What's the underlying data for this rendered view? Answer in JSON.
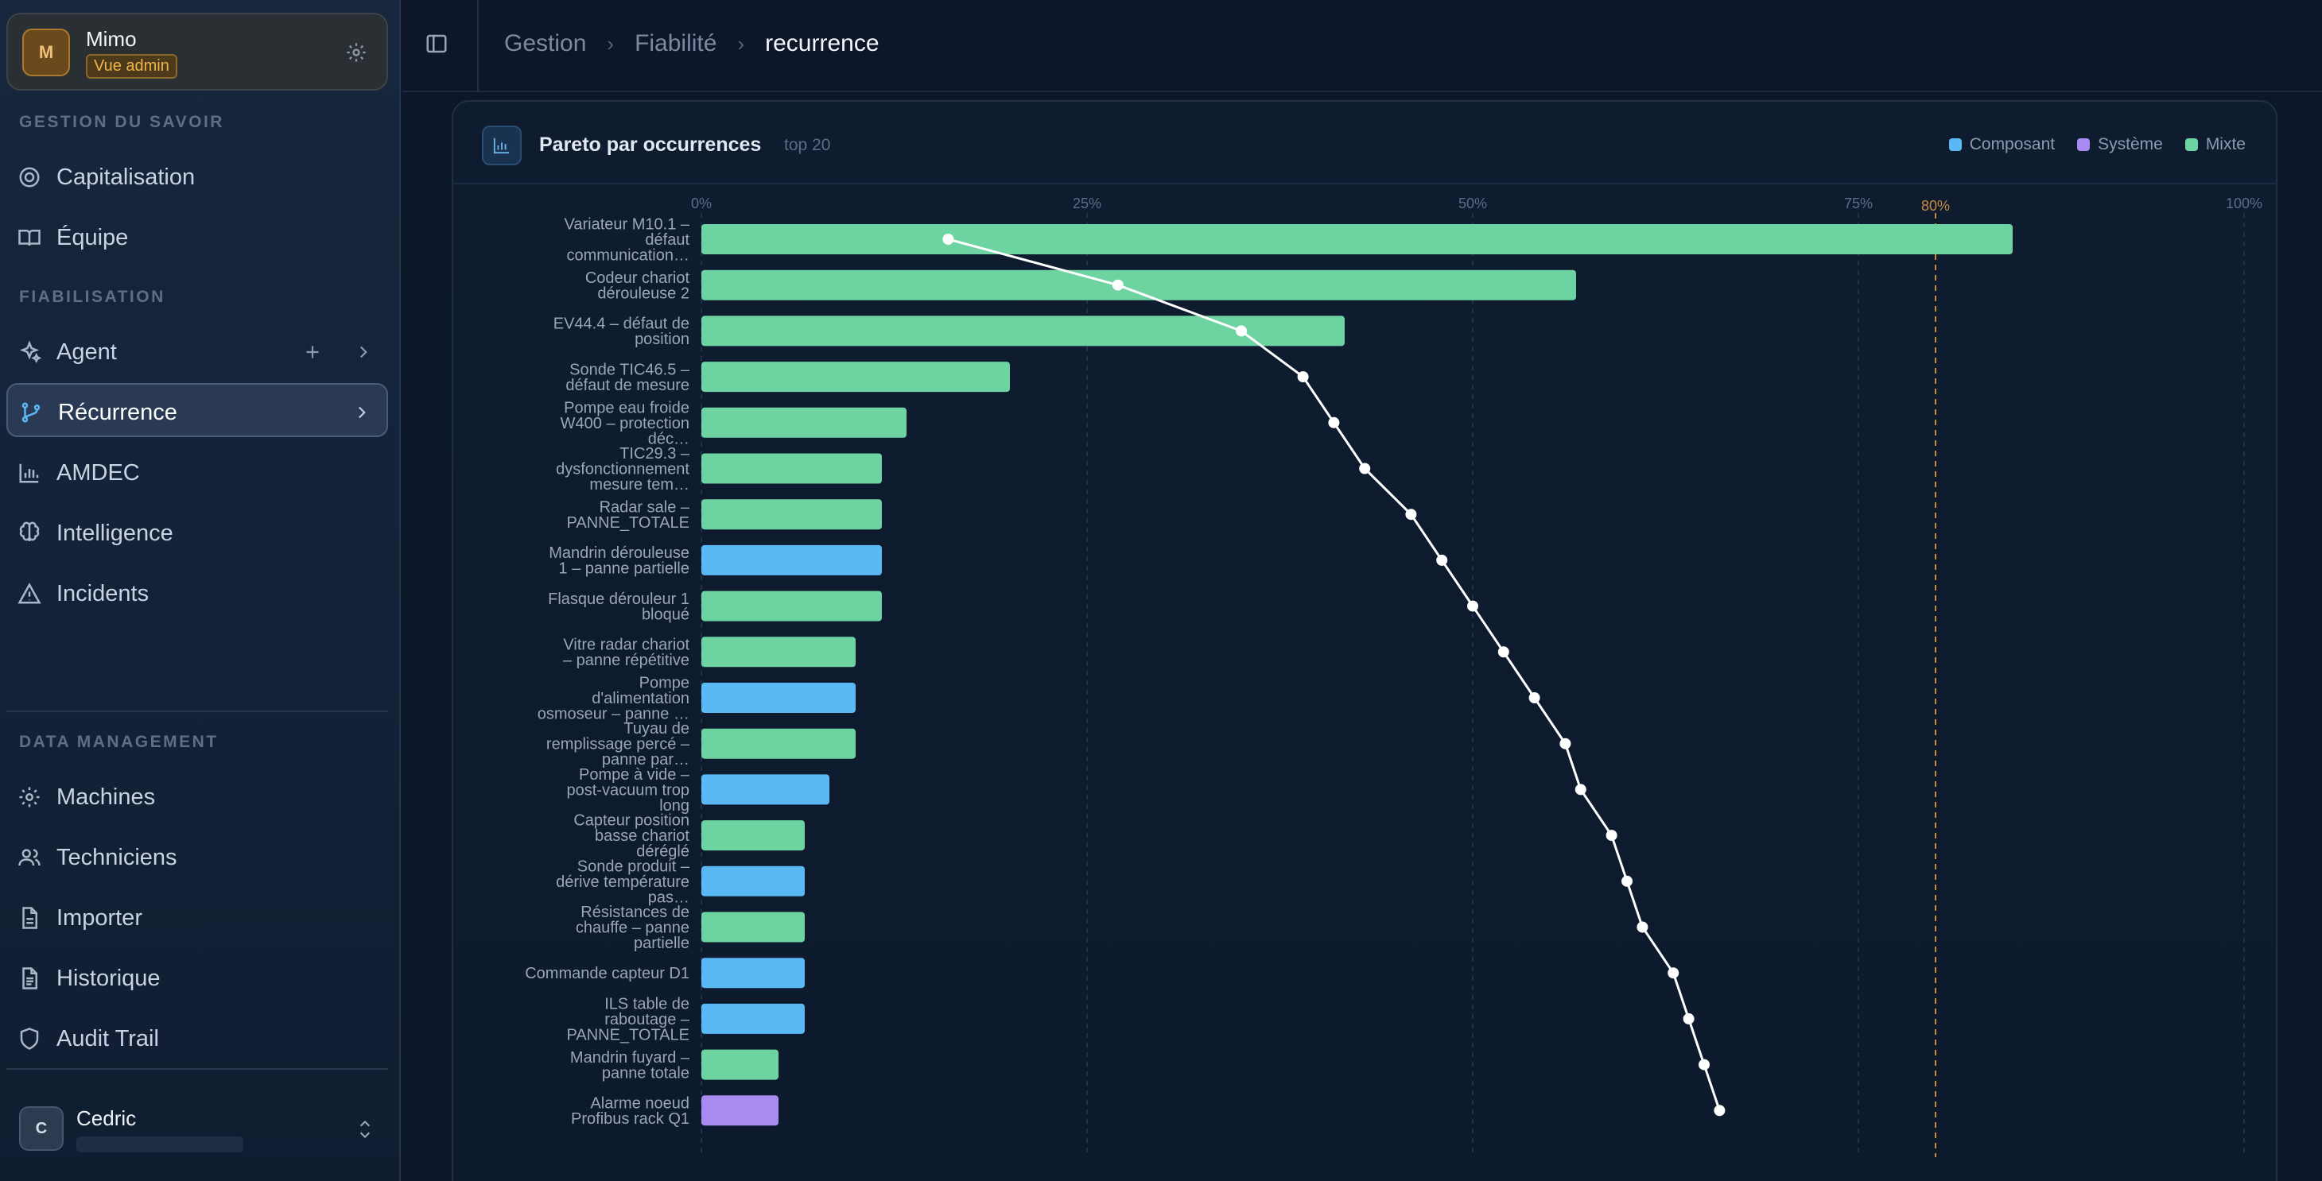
{
  "workspace": {
    "avatar": "M",
    "name": "Mimo",
    "badge": "Vue admin"
  },
  "sidebar": {
    "section_knowledge": "GESTION DU SAVOIR",
    "section_reliability": "FIABILISATION",
    "section_data": "DATA MANAGEMENT",
    "items": [
      {
        "label": "Capitalisation",
        "icon": "target-icon"
      },
      {
        "label": "Équipe",
        "icon": "book-icon"
      },
      {
        "label": "Agent",
        "icon": "sparkles-icon"
      },
      {
        "label": "Récurrence",
        "icon": "git-branch-icon"
      },
      {
        "label": "AMDEC",
        "icon": "bar-chart-icon"
      },
      {
        "label": "Intelligence",
        "icon": "brain-icon"
      },
      {
        "label": "Incidents",
        "icon": "warning-icon"
      },
      {
        "label": "Machines",
        "icon": "gear-icon"
      },
      {
        "label": "Techniciens",
        "icon": "users-icon"
      },
      {
        "label": "Importer",
        "icon": "file-icon"
      },
      {
        "label": "Historique",
        "icon": "file-list-icon"
      },
      {
        "label": "Audit Trail",
        "icon": "shield-icon"
      }
    ]
  },
  "user": {
    "avatar": "C",
    "name": "Cedric"
  },
  "header": {
    "breadcrumbs": [
      "Gestion",
      "Fiabilité",
      "recurrence"
    ]
  },
  "card": {
    "title": "Pareto par occurrences",
    "subtitle": "top 20"
  },
  "colors": {
    "Composant": "#5ab8f5",
    "Système": "#a78bf0",
    "Mixte": "#6dd3a0",
    "threshold": "#c98a3e"
  },
  "chart_data": {
    "type": "bar",
    "orientation": "horizontal",
    "title": "Pareto par occurrences",
    "legend": {
      "placement": "top-right",
      "entries": [
        "Composant",
        "Système",
        "Mixte"
      ]
    },
    "x_ticks": [
      "0%",
      "25%",
      "50%",
      "75%",
      "100%"
    ],
    "xlim": [
      0,
      100
    ],
    "threshold": {
      "value": 80,
      "label": "80%"
    },
    "bars": [
      {
        "label": "Variateur M10.1 – défaut communication…",
        "value": 85,
        "type": "Mixte",
        "cumulative": 16
      },
      {
        "label": "Codeur chariot dérouleuse 2",
        "value": 56.7,
        "type": "Mixte",
        "cumulative": 27
      },
      {
        "label": "EV44.4 – défaut de position",
        "value": 41.7,
        "type": "Mixte",
        "cumulative": 35
      },
      {
        "label": "Sonde TIC46.5 – défaut de mesure",
        "value": 20,
        "type": "Mixte",
        "cumulative": 39
      },
      {
        "label": "Pompe eau froide W400 – protection déc…",
        "value": 13.3,
        "type": "Mixte",
        "cumulative": 41
      },
      {
        "label": "TIC29.3 – dysfonctionnement mesure tem…",
        "value": 11.7,
        "type": "Mixte",
        "cumulative": 43
      },
      {
        "label": "Radar sale – PANNE_TOTALE",
        "value": 11.7,
        "type": "Mixte",
        "cumulative": 46
      },
      {
        "label": "Mandrin dérouleuse 1 – panne partielle",
        "value": 11.7,
        "type": "Composant",
        "cumulative": 48
      },
      {
        "label": "Flasque dérouleur 1 bloqué",
        "value": 11.7,
        "type": "Mixte",
        "cumulative": 50
      },
      {
        "label": "Vitre radar chariot – panne répétitive",
        "value": 10,
        "type": "Mixte",
        "cumulative": 52
      },
      {
        "label": "Pompe d'alimentation osmoseur – panne …",
        "value": 10,
        "type": "Composant",
        "cumulative": 54
      },
      {
        "label": "Tuyau de remplissage percé – panne par…",
        "value": 10,
        "type": "Mixte",
        "cumulative": 56
      },
      {
        "label": "Pompe à vide – post-vacuum trop long",
        "value": 8.3,
        "type": "Composant",
        "cumulative": 57
      },
      {
        "label": "Capteur position basse chariot déréglé",
        "value": 6.7,
        "type": "Mixte",
        "cumulative": 59
      },
      {
        "label": "Sonde produit – dérive température pas…",
        "value": 6.7,
        "type": "Composant",
        "cumulative": 60
      },
      {
        "label": "Résistances de chauffe – panne partielle",
        "value": 6.7,
        "type": "Mixte",
        "cumulative": 61
      },
      {
        "label": "Commande capteur D1",
        "value": 6.7,
        "type": "Composant",
        "cumulative": 63
      },
      {
        "label": "ILS table de raboutage – PANNE_TOTALE",
        "value": 6.7,
        "type": "Composant",
        "cumulative": 64
      },
      {
        "label": "Mandrin fuyard – panne totale",
        "value": 5,
        "type": "Mixte",
        "cumulative": 65
      },
      {
        "label": "Alarme noeud Profibus rack Q1",
        "value": 5,
        "type": "Système",
        "cumulative": 66
      }
    ]
  }
}
